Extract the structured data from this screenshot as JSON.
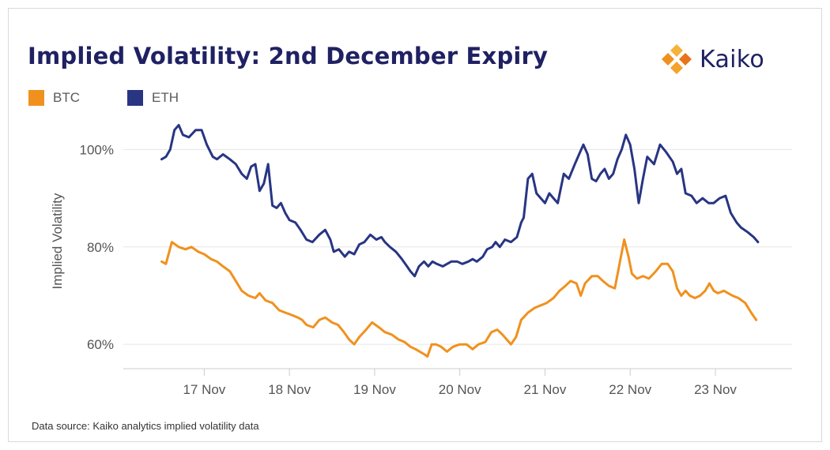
{
  "title": "Implied Volatility: 2nd December Expiry",
  "logo": {
    "text": "Kaiko",
    "icon": "kaiko-logo-icon"
  },
  "source": "Data source: Kaiko analytics implied volatility data",
  "colors": {
    "btc": "#f0911e",
    "eth": "#283583",
    "title": "#1f2163"
  },
  "chart_data": {
    "type": "line",
    "title": "Implied Volatility: 2nd December Expiry",
    "xlabel": "",
    "ylabel": "Implied Volatility",
    "x_ticks": [
      "17 Nov",
      "18 Nov",
      "19 Nov",
      "20 Nov",
      "21 Nov",
      "22 Nov",
      "23 Nov"
    ],
    "y_ticks": [
      "60%",
      "80%",
      "100%"
    ],
    "y_tick_values": [
      60,
      80,
      100
    ],
    "ylim": [
      55,
      108
    ],
    "xlim": [
      16.05,
      23.9
    ],
    "grid": true,
    "legend_position": "top-left",
    "series": [
      {
        "name": "BTC",
        "color": "#f0911e",
        "points": [
          [
            16.5,
            77
          ],
          [
            16.55,
            76.5
          ],
          [
            16.62,
            81
          ],
          [
            16.7,
            80
          ],
          [
            16.78,
            79.5
          ],
          [
            16.85,
            80
          ],
          [
            16.93,
            79
          ],
          [
            17.0,
            78.5
          ],
          [
            17.08,
            77.5
          ],
          [
            17.15,
            77
          ],
          [
            17.22,
            76
          ],
          [
            17.3,
            75
          ],
          [
            17.37,
            73
          ],
          [
            17.44,
            71
          ],
          [
            17.52,
            70
          ],
          [
            17.6,
            69.5
          ],
          [
            17.65,
            70.5
          ],
          [
            17.72,
            69
          ],
          [
            17.8,
            68.5
          ],
          [
            17.88,
            67
          ],
          [
            17.95,
            66.5
          ],
          [
            18.03,
            66
          ],
          [
            18.1,
            65.5
          ],
          [
            18.15,
            65
          ],
          [
            18.2,
            64
          ],
          [
            18.28,
            63.5
          ],
          [
            18.35,
            65
          ],
          [
            18.42,
            65.5
          ],
          [
            18.5,
            64.5
          ],
          [
            18.57,
            64
          ],
          [
            18.64,
            62.5
          ],
          [
            18.7,
            61
          ],
          [
            18.76,
            60
          ],
          [
            18.82,
            61.5
          ],
          [
            18.9,
            63
          ],
          [
            18.97,
            64.5
          ],
          [
            19.05,
            63.5
          ],
          [
            19.12,
            62.5
          ],
          [
            19.2,
            62
          ],
          [
            19.28,
            61
          ],
          [
            19.35,
            60.5
          ],
          [
            19.42,
            59.5
          ],
          [
            19.48,
            59
          ],
          [
            19.53,
            58.5
          ],
          [
            19.58,
            58
          ],
          [
            19.62,
            57.5
          ],
          [
            19.67,
            60
          ],
          [
            19.72,
            60
          ],
          [
            19.78,
            59.5
          ],
          [
            19.85,
            58.5
          ],
          [
            19.92,
            59.5
          ],
          [
            20.0,
            60
          ],
          [
            20.08,
            60
          ],
          [
            20.15,
            59
          ],
          [
            20.22,
            60
          ],
          [
            20.3,
            60.5
          ],
          [
            20.37,
            62.5
          ],
          [
            20.44,
            63
          ],
          [
            20.5,
            62
          ],
          [
            20.55,
            61
          ],
          [
            20.6,
            60
          ],
          [
            20.66,
            61.5
          ],
          [
            20.72,
            65
          ],
          [
            20.8,
            66.5
          ],
          [
            20.88,
            67.5
          ],
          [
            20.95,
            68
          ],
          [
            21.02,
            68.5
          ],
          [
            21.1,
            69.5
          ],
          [
            21.17,
            71
          ],
          [
            21.24,
            72
          ],
          [
            21.3,
            73
          ],
          [
            21.37,
            72.5
          ],
          [
            21.42,
            70
          ],
          [
            21.47,
            72.5
          ],
          [
            21.55,
            74
          ],
          [
            21.62,
            74
          ],
          [
            21.68,
            73
          ],
          [
            21.75,
            72
          ],
          [
            21.82,
            71.5
          ],
          [
            21.88,
            77
          ],
          [
            21.93,
            81.5
          ],
          [
            21.98,
            78
          ],
          [
            22.02,
            74.5
          ],
          [
            22.08,
            73.5
          ],
          [
            22.15,
            74
          ],
          [
            22.22,
            73.5
          ],
          [
            22.3,
            75
          ],
          [
            22.37,
            76.5
          ],
          [
            22.44,
            76.5
          ],
          [
            22.5,
            75
          ],
          [
            22.55,
            71.5
          ],
          [
            22.6,
            70
          ],
          [
            22.65,
            71
          ],
          [
            22.7,
            70
          ],
          [
            22.76,
            69.5
          ],
          [
            22.82,
            70
          ],
          [
            22.88,
            71
          ],
          [
            22.93,
            72.5
          ],
          [
            22.98,
            71
          ],
          [
            23.03,
            70.5
          ],
          [
            23.1,
            71
          ],
          [
            23.15,
            70.5
          ],
          [
            23.2,
            70
          ],
          [
            23.27,
            69.5
          ],
          [
            23.35,
            68.5
          ],
          [
            23.42,
            66.5
          ],
          [
            23.48,
            65
          ]
        ]
      },
      {
        "name": "ETH",
        "color": "#283583",
        "points": [
          [
            16.5,
            98
          ],
          [
            16.55,
            98.5
          ],
          [
            16.6,
            100
          ],
          [
            16.65,
            104
          ],
          [
            16.7,
            105
          ],
          [
            16.75,
            103
          ],
          [
            16.82,
            102.5
          ],
          [
            16.9,
            104
          ],
          [
            16.97,
            104
          ],
          [
            17.03,
            101
          ],
          [
            17.1,
            98.5
          ],
          [
            17.15,
            98
          ],
          [
            17.22,
            99
          ],
          [
            17.3,
            98
          ],
          [
            17.37,
            97
          ],
          [
            17.44,
            95
          ],
          [
            17.5,
            94
          ],
          [
            17.55,
            96.5
          ],
          [
            17.6,
            97
          ],
          [
            17.65,
            91.5
          ],
          [
            17.7,
            93
          ],
          [
            17.75,
            97
          ],
          [
            17.8,
            88.5
          ],
          [
            17.85,
            88
          ],
          [
            17.9,
            89
          ],
          [
            17.95,
            87
          ],
          [
            18.0,
            85.5
          ],
          [
            18.07,
            85
          ],
          [
            18.13,
            83.5
          ],
          [
            18.2,
            81.5
          ],
          [
            18.27,
            81
          ],
          [
            18.35,
            82.5
          ],
          [
            18.42,
            83.5
          ],
          [
            18.48,
            81.5
          ],
          [
            18.52,
            79
          ],
          [
            18.58,
            79.5
          ],
          [
            18.65,
            78
          ],
          [
            18.7,
            79
          ],
          [
            18.76,
            78.5
          ],
          [
            18.82,
            80.5
          ],
          [
            18.88,
            81
          ],
          [
            18.95,
            82.5
          ],
          [
            19.02,
            81.5
          ],
          [
            19.08,
            82
          ],
          [
            19.12,
            81
          ],
          [
            19.18,
            80
          ],
          [
            19.25,
            79
          ],
          [
            19.32,
            77.5
          ],
          [
            19.38,
            76
          ],
          [
            19.42,
            75
          ],
          [
            19.47,
            74
          ],
          [
            19.52,
            76
          ],
          [
            19.58,
            77
          ],
          [
            19.63,
            76
          ],
          [
            19.68,
            77
          ],
          [
            19.73,
            76.5
          ],
          [
            19.8,
            76
          ],
          [
            19.85,
            76.5
          ],
          [
            19.9,
            77
          ],
          [
            19.97,
            77
          ],
          [
            20.03,
            76.5
          ],
          [
            20.1,
            77
          ],
          [
            20.15,
            77.5
          ],
          [
            20.2,
            77
          ],
          [
            20.27,
            78
          ],
          [
            20.32,
            79.5
          ],
          [
            20.38,
            80
          ],
          [
            20.42,
            81
          ],
          [
            20.47,
            80
          ],
          [
            20.53,
            81.5
          ],
          [
            20.6,
            81
          ],
          [
            20.67,
            82
          ],
          [
            20.72,
            85
          ],
          [
            20.75,
            86
          ],
          [
            20.8,
            94
          ],
          [
            20.85,
            95
          ],
          [
            20.9,
            91
          ],
          [
            20.95,
            90
          ],
          [
            21.0,
            89
          ],
          [
            21.05,
            91
          ],
          [
            21.1,
            90
          ],
          [
            21.15,
            89
          ],
          [
            21.22,
            95
          ],
          [
            21.28,
            94
          ],
          [
            21.35,
            97
          ],
          [
            21.4,
            99
          ],
          [
            21.45,
            101
          ],
          [
            21.5,
            99
          ],
          [
            21.55,
            94
          ],
          [
            21.6,
            93.5
          ],
          [
            21.65,
            95
          ],
          [
            21.7,
            96
          ],
          [
            21.75,
            94
          ],
          [
            21.8,
            95
          ],
          [
            21.85,
            98
          ],
          [
            21.9,
            100
          ],
          [
            21.95,
            103
          ],
          [
            22.0,
            101
          ],
          [
            22.05,
            96
          ],
          [
            22.1,
            89
          ],
          [
            22.15,
            94
          ],
          [
            22.2,
            98.5
          ],
          [
            22.28,
            97
          ],
          [
            22.35,
            101
          ],
          [
            22.42,
            99.5
          ],
          [
            22.5,
            97.5
          ],
          [
            22.55,
            95
          ],
          [
            22.6,
            96
          ],
          [
            22.65,
            91
          ],
          [
            22.72,
            90.5
          ],
          [
            22.78,
            89
          ],
          [
            22.85,
            90
          ],
          [
            22.92,
            89
          ],
          [
            22.98,
            89
          ],
          [
            23.05,
            90
          ],
          [
            23.12,
            90.5
          ],
          [
            23.18,
            87
          ],
          [
            23.25,
            85
          ],
          [
            23.3,
            84
          ],
          [
            23.38,
            83
          ],
          [
            23.45,
            82
          ],
          [
            23.5,
            81
          ]
        ]
      }
    ]
  }
}
